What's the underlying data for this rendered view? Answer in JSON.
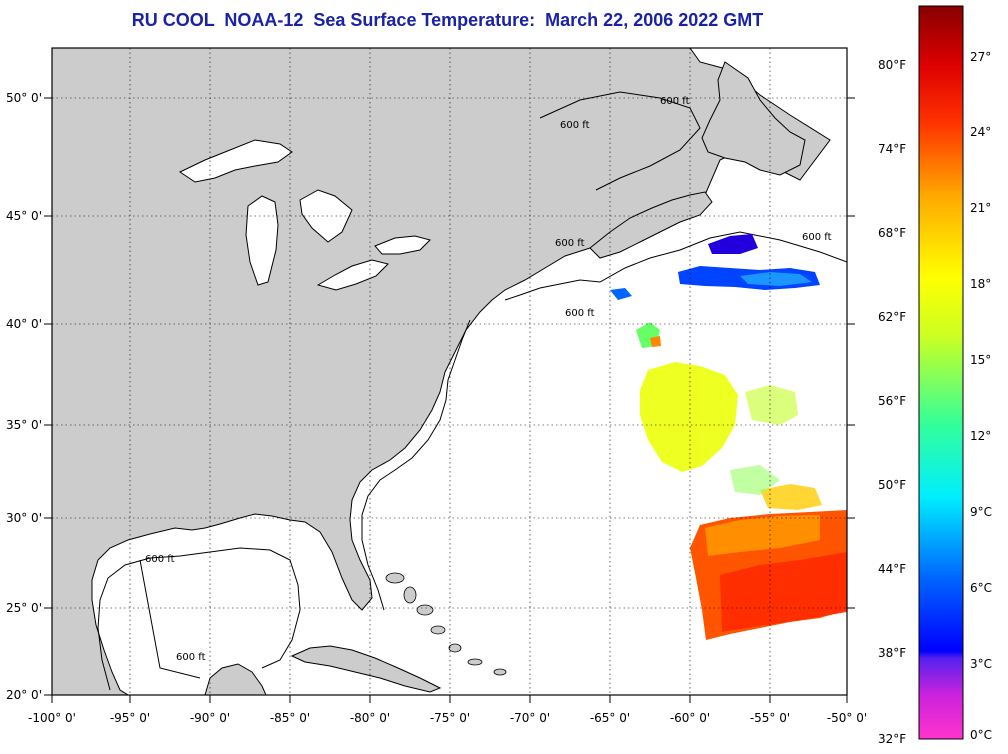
{
  "title": "RU COOL  NOAA-12  Sea Surface Temperature:  March 22, 2006 2022 GMT",
  "map": {
    "lon_labels": [
      "-100° 0'",
      "-95° 0'",
      "-90° 0'",
      "-85° 0'",
      "-80° 0'",
      "-75° 0'",
      "-70° 0'",
      "-65° 0'",
      "-60° 0'",
      "-55° 0'",
      "-50° 0'"
    ],
    "lat_labels": [
      "50° 0'",
      "45° 0'",
      "40° 0'",
      "35° 0'",
      "30° 0'",
      "25° 0'",
      "20° 0'"
    ],
    "isobath_label": "600 ft",
    "land_color": "#cccccc",
    "ocean_color": "#ffffff"
  },
  "colorbar": {
    "fahrenheit_labels": [
      "80°F",
      "74°F",
      "68°F",
      "62°F",
      "56°F",
      "50°F",
      "44°F",
      "38°F",
      "32°F"
    ],
    "celsius_labels": [
      "27°C",
      "24°C",
      "21°C",
      "18°C",
      "15°C",
      "12°C",
      "9°C",
      "6°C",
      "3°C",
      "0°C"
    ],
    "colors_bottom_to_top": [
      "#ff33cc",
      "#aa22dd",
      "#5522ee",
      "#0000ff",
      "#0099ff",
      "#00ffff",
      "#66ff66",
      "#ffff00",
      "#ff9900",
      "#ff2200",
      "#cc0000",
      "#880000"
    ]
  }
}
